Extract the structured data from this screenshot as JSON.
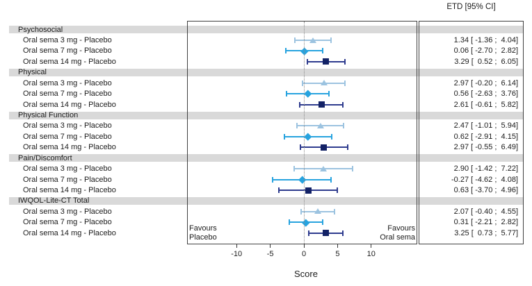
{
  "colors": {
    "band_gray": "#d9d9d9",
    "border": "#3f3f3f",
    "zero_line": "#8a8a8a",
    "dose3": "#9cc3e0",
    "dose7": "#27a3df",
    "dose14_marker": "#132266",
    "dose14_line": "#2e3b8e"
  },
  "chart_data": {
    "type": "forest",
    "value_column_header": "ETD [95% CI]",
    "xlabel": "Score",
    "x_ticks": [
      -10,
      -5,
      0,
      5,
      10
    ],
    "x_range": [
      -17.4,
      16.8
    ],
    "zero_line_at": 0,
    "annotations": {
      "favours_left": [
        "Favours",
        "Placebo"
      ],
      "favours_right": [
        "Favours",
        "Oral sema"
      ]
    },
    "series_legend": [
      {
        "name": "Oral sema 3 mg - Placebo",
        "marker": "triangle",
        "color": "#9cc3e0",
        "line_color": "#9cc3e0"
      },
      {
        "name": "Oral sema 7 mg - Placebo",
        "marker": "diamond",
        "color": "#27a3df",
        "line_color": "#27a3df"
      },
      {
        "name": "Oral sema 14 mg - Placebo",
        "marker": "square",
        "color": "#132266",
        "line_color": "#2e3b8e"
      }
    ],
    "groups": [
      {
        "label": "Psychosocial",
        "rows": [
          {
            "label": "Oral sema 3 mg - Placebo",
            "marker": "triangle",
            "est": 1.34,
            "lo": -1.36,
            "hi": 4.04,
            "text": "1.34 [ -1.36 ;  4.04]"
          },
          {
            "label": "Oral sema 7 mg - Placebo",
            "marker": "diamond",
            "est": 0.06,
            "lo": -2.7,
            "hi": 2.82,
            "text": "0.06 [ -2.70 ;  2.82]"
          },
          {
            "label": "Oral sema 14 mg - Placebo",
            "marker": "square",
            "est": 3.29,
            "lo": 0.52,
            "hi": 6.05,
            "text": "3.29 [  0.52 ;  6.05]"
          }
        ]
      },
      {
        "label": "Physical",
        "rows": [
          {
            "label": "Oral sema 3 mg - Placebo",
            "marker": "triangle",
            "est": 2.97,
            "lo": -0.2,
            "hi": 6.14,
            "text": "2.97 [ -0.20 ;  6.14]"
          },
          {
            "label": "Oral sema 7 mg - Placebo",
            "marker": "diamond",
            "est": 0.56,
            "lo": -2.63,
            "hi": 3.76,
            "text": "0.56 [ -2.63 ;  3.76]"
          },
          {
            "label": "Oral sema 14 mg - Placebo",
            "marker": "square",
            "est": 2.61,
            "lo": -0.61,
            "hi": 5.82,
            "text": "2.61 [ -0.61 ;  5.82]"
          }
        ]
      },
      {
        "label": "Physical Function",
        "rows": [
          {
            "label": "Oral sema 3 mg - Placebo",
            "marker": "triangle",
            "est": 2.47,
            "lo": -1.01,
            "hi": 5.94,
            "text": "2.47 [ -1.01 ;  5.94]"
          },
          {
            "label": "Oral sema 7 mg - Placebo",
            "marker": "diamond",
            "est": 0.62,
            "lo": -2.91,
            "hi": 4.15,
            "text": "0.62 [ -2.91 ;  4.15]"
          },
          {
            "label": "Oral sema 14 mg - Placebo",
            "marker": "square",
            "est": 2.97,
            "lo": -0.55,
            "hi": 6.49,
            "text": "2.97 [ -0.55 ;  6.49]"
          }
        ]
      },
      {
        "label": "Pain/Discomfort",
        "rows": [
          {
            "label": "Oral sema 3 mg - Placebo",
            "marker": "triangle",
            "est": 2.9,
            "lo": -1.42,
            "hi": 7.22,
            "text": "2.90 [ -1.42 ;  7.22]"
          },
          {
            "label": "Oral sema 7 mg - Placebo",
            "marker": "diamond",
            "est": -0.27,
            "lo": -4.62,
            "hi": 4.08,
            "text": "-0.27 [ -4.62 ;  4.08]"
          },
          {
            "label": "Oral sema 14 mg - Placebo",
            "marker": "square",
            "est": 0.63,
            "lo": -3.7,
            "hi": 4.96,
            "text": "0.63 [ -3.70 ;  4.96]"
          }
        ]
      },
      {
        "label": "IWQOL-Lite-CT Total",
        "rows": [
          {
            "label": "Oral sema 3 mg - Placebo",
            "marker": "triangle",
            "est": 2.07,
            "lo": -0.4,
            "hi": 4.55,
            "text": "2.07 [ -0.40 ;  4.55]"
          },
          {
            "label": "Oral sema 7 mg - Placebo",
            "marker": "diamond",
            "est": 0.31,
            "lo": -2.21,
            "hi": 2.82,
            "text": "0.31 [ -2.21 ;  2.82]"
          },
          {
            "label": "Oral sema 14 mg - Placebo",
            "marker": "square",
            "est": 3.25,
            "lo": 0.73,
            "hi": 5.77,
            "text": "3.25 [  0.73 ;  5.77]"
          }
        ]
      }
    ]
  }
}
